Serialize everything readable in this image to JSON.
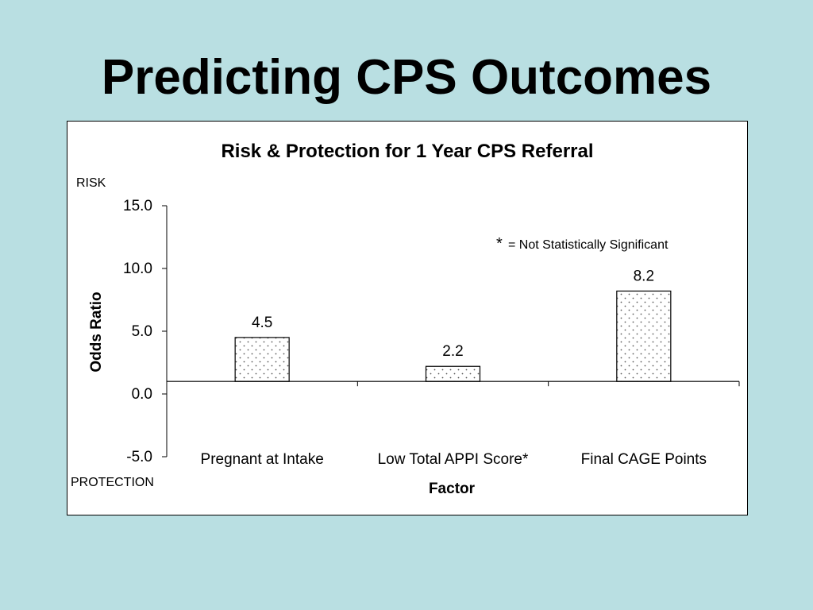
{
  "slide": {
    "title": "Predicting CPS Outcomes"
  },
  "chart_data": {
    "type": "bar",
    "title": "Risk & Protection for 1 Year CPS Referral",
    "xlabel": "Factor",
    "ylabel": "Odds Ratio",
    "ylim": [
      -5,
      15
    ],
    "yticks": [
      15,
      10,
      5,
      0,
      -5
    ],
    "ytick_labels": [
      "15.0",
      "10.0",
      "5.0",
      "0.0",
      "-5.0"
    ],
    "baseline": 1,
    "categories": [
      "Pregnant at Intake",
      "Low Total APPI Score*",
      "Final CAGE Points"
    ],
    "values": [
      4.5,
      2.2,
      8.2
    ],
    "data_labels": [
      "4.5",
      "2.2",
      "8.2"
    ],
    "top_annotation": "RISK",
    "bottom_annotation": "PROTECTION",
    "footnote_symbol": "*",
    "footnote_text": "= Not Statistically Significant",
    "bar_fill": "dotted"
  }
}
